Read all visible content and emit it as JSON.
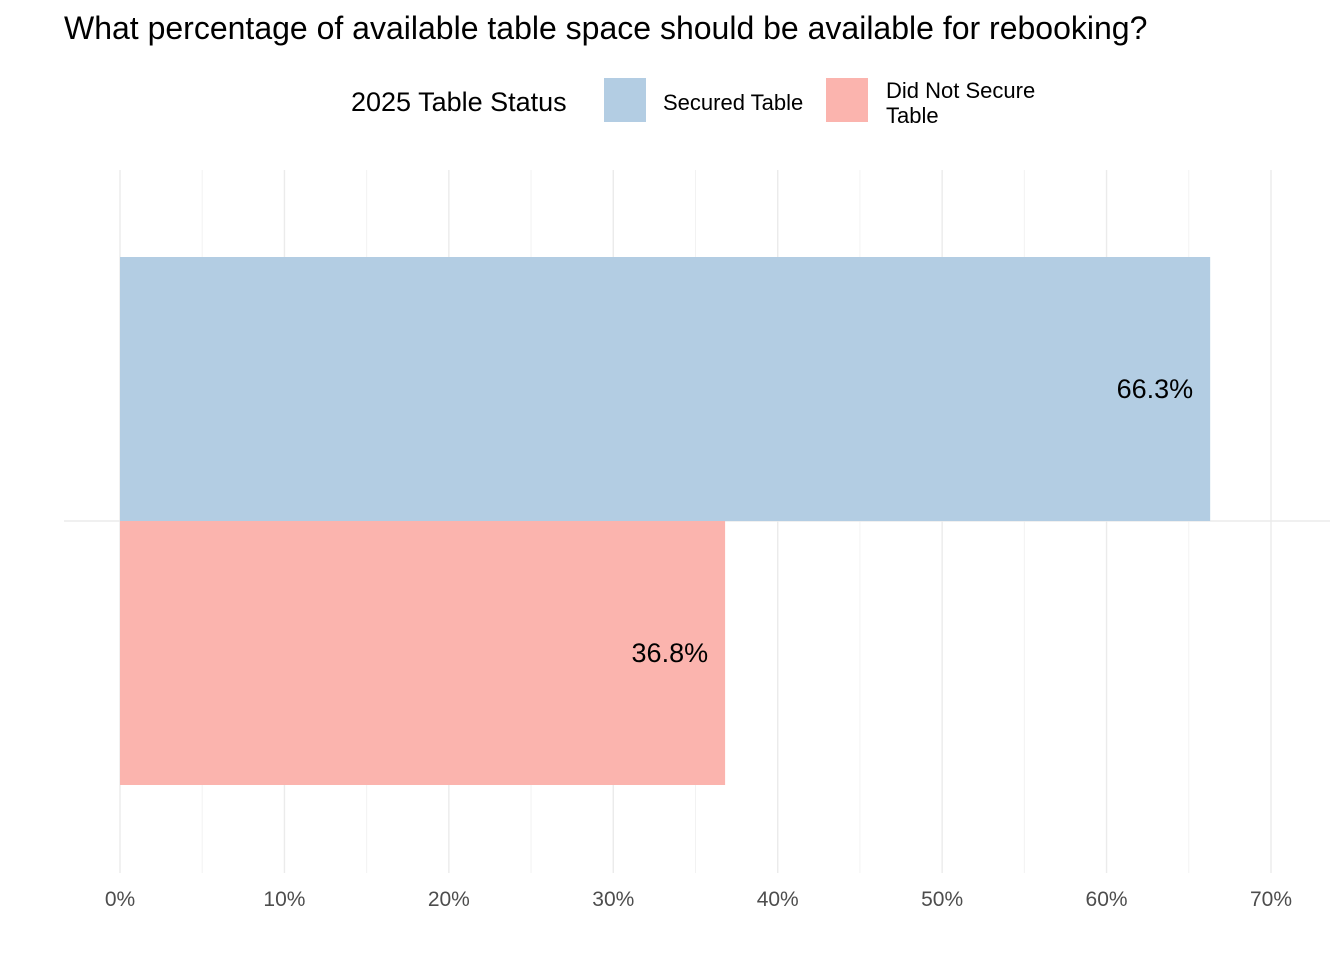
{
  "title": "What percentage of available table space should be available for rebooking?",
  "legend": {
    "title": "2025 Table Status",
    "items": [
      {
        "label": "Secured Table",
        "color": "#b3cde3"
      },
      {
        "label": "Did Not Secure Table",
        "color": "#fbb4ae"
      }
    ],
    "position": "top"
  },
  "chart_data": {
    "type": "bar",
    "orientation": "horizontal",
    "title": "What percentage of available table space should be available for rebooking?",
    "xlabel": "",
    "ylabel": "",
    "xlim": [
      0,
      70
    ],
    "x_ticks": [
      "0%",
      "10%",
      "20%",
      "30%",
      "40%",
      "50%",
      "60%",
      "70%"
    ],
    "grid": true,
    "series": [
      {
        "name": "Secured Table",
        "value": 66.3,
        "label": "66.3%",
        "color": "#b3cde3"
      },
      {
        "name": "Did Not Secure Table",
        "value": 36.8,
        "label": "36.8%",
        "color": "#fbb4ae"
      }
    ]
  }
}
